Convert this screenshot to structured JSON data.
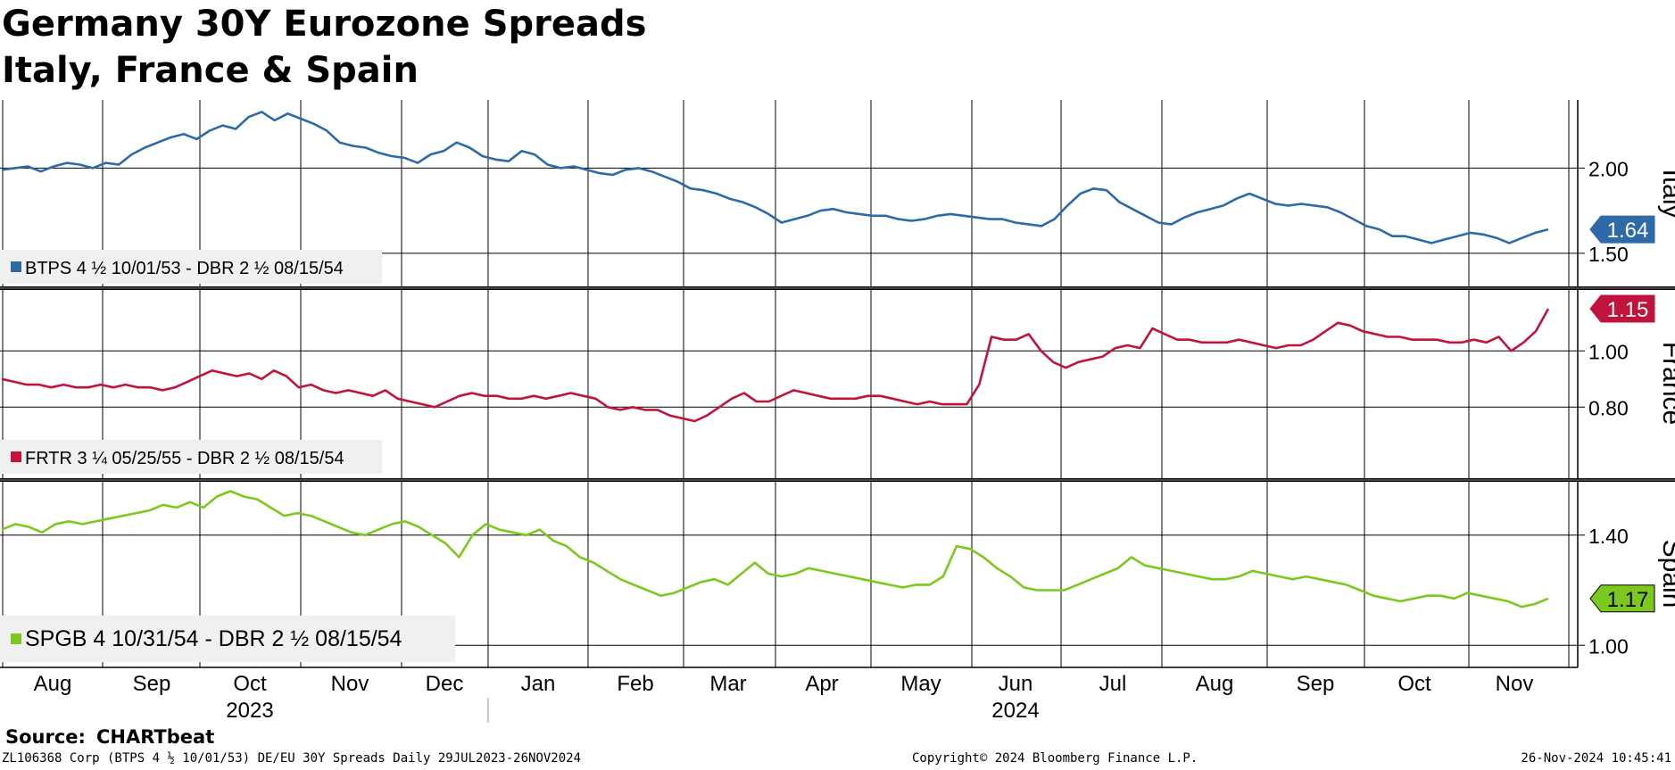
{
  "title_line1": "Germany 30Y Eurozone Spreads",
  "title_line2": "Italy, France & Spain",
  "source_label": "Source:",
  "source_value": "CHARTbeat",
  "footer_left": "ZL106368 Corp (BTPS 4 ½ 10/01/53) DE/EU 30Y Spreads  Daily 29JUL2023-26NOV2024",
  "footer_center": "Copyright© 2024 Bloomberg Finance L.P.",
  "footer_right": "26-Nov-2024 10:45:41",
  "chart_data": {
    "type": "line",
    "title": "Germany 30Y Eurozone Spreads Italy, France & Spain",
    "x_range": [
      "2023-07-29",
      "2024-11-26"
    ],
    "month_ticks": [
      "Aug",
      "Sep",
      "Oct",
      "Nov",
      "Dec",
      "Jan",
      "Feb",
      "Mar",
      "Apr",
      "May",
      "Jun",
      "Jul",
      "Aug",
      "Sep",
      "Oct",
      "Nov"
    ],
    "year_labels": [
      {
        "label": "2023",
        "month_index": 2
      },
      {
        "label": "2024",
        "month_index": 10
      }
    ],
    "panels": [
      {
        "name": "Italy",
        "series_name": "BTPS 4 ½ 10/01/53 - DBR 2 ½ 08/15/54",
        "color": "#2e6aa8",
        "ylim": [
          1.3,
          2.4
        ],
        "ticks": [
          {
            "value": 1.5,
            "label": "1.50"
          },
          {
            "value": 2.0,
            "label": "2.00"
          }
        ],
        "last_value": 1.64,
        "last_label": "1.64",
        "values": [
          1.99,
          2.0,
          2.01,
          1.98,
          2.01,
          2.03,
          2.02,
          2.0,
          2.03,
          2.02,
          2.08,
          2.12,
          2.15,
          2.18,
          2.2,
          2.17,
          2.22,
          2.25,
          2.23,
          2.3,
          2.33,
          2.28,
          2.32,
          2.29,
          2.26,
          2.22,
          2.15,
          2.13,
          2.12,
          2.09,
          2.07,
          2.06,
          2.03,
          2.08,
          2.1,
          2.15,
          2.12,
          2.07,
          2.05,
          2.04,
          2.1,
          2.08,
          2.02,
          2.0,
          2.01,
          1.99,
          1.97,
          1.96,
          1.99,
          2.0,
          1.98,
          1.95,
          1.92,
          1.88,
          1.87,
          1.85,
          1.82,
          1.8,
          1.77,
          1.73,
          1.68,
          1.7,
          1.72,
          1.75,
          1.76,
          1.74,
          1.73,
          1.72,
          1.72,
          1.7,
          1.69,
          1.7,
          1.72,
          1.73,
          1.72,
          1.71,
          1.7,
          1.7,
          1.68,
          1.67,
          1.66,
          1.7,
          1.78,
          1.85,
          1.88,
          1.87,
          1.8,
          1.76,
          1.72,
          1.68,
          1.67,
          1.71,
          1.74,
          1.76,
          1.78,
          1.82,
          1.85,
          1.82,
          1.79,
          1.78,
          1.79,
          1.78,
          1.77,
          1.74,
          1.7,
          1.66,
          1.64,
          1.6,
          1.6,
          1.58,
          1.56,
          1.58,
          1.6,
          1.62,
          1.61,
          1.59,
          1.56,
          1.59,
          1.62,
          1.64
        ]
      },
      {
        "name": "France",
        "series_name": "FRTR 3 ¼ 05/25/55 - DBR 2 ½ 08/15/54",
        "color": "#c0143c",
        "ylim": [
          0.55,
          1.22
        ],
        "ticks": [
          {
            "value": 0.8,
            "label": "0.80"
          },
          {
            "value": 1.0,
            "label": "1.00"
          }
        ],
        "last_value": 1.15,
        "last_label": "1.15",
        "values": [
          0.9,
          0.89,
          0.88,
          0.88,
          0.87,
          0.88,
          0.87,
          0.87,
          0.88,
          0.87,
          0.88,
          0.87,
          0.87,
          0.86,
          0.87,
          0.89,
          0.91,
          0.93,
          0.92,
          0.91,
          0.92,
          0.9,
          0.93,
          0.91,
          0.87,
          0.88,
          0.86,
          0.85,
          0.86,
          0.85,
          0.84,
          0.86,
          0.83,
          0.82,
          0.81,
          0.8,
          0.82,
          0.84,
          0.85,
          0.84,
          0.84,
          0.83,
          0.83,
          0.84,
          0.83,
          0.84,
          0.85,
          0.84,
          0.83,
          0.8,
          0.79,
          0.8,
          0.79,
          0.79,
          0.77,
          0.76,
          0.75,
          0.77,
          0.8,
          0.83,
          0.85,
          0.82,
          0.82,
          0.84,
          0.86,
          0.85,
          0.84,
          0.83,
          0.83,
          0.83,
          0.84,
          0.84,
          0.83,
          0.82,
          0.81,
          0.82,
          0.81,
          0.81,
          0.81,
          0.88,
          1.05,
          1.04,
          1.04,
          1.06,
          1.0,
          0.96,
          0.94,
          0.96,
          0.97,
          0.98,
          1.01,
          1.02,
          1.01,
          1.08,
          1.06,
          1.04,
          1.04,
          1.03,
          1.03,
          1.03,
          1.04,
          1.03,
          1.02,
          1.01,
          1.02,
          1.02,
          1.04,
          1.07,
          1.1,
          1.09,
          1.07,
          1.06,
          1.05,
          1.05,
          1.04,
          1.04,
          1.04,
          1.03,
          1.03,
          1.04,
          1.03,
          1.05,
          1.0,
          1.03,
          1.07,
          1.15
        ]
      },
      {
        "name": "Spain",
        "series_name": "SPGB 4 10/31/54 - DBR 2 ½ 08/15/54",
        "color": "#7dc81e",
        "ylim": [
          0.92,
          1.6
        ],
        "ticks": [
          {
            "value": 1.0,
            "label": "1.00"
          },
          {
            "value": 1.4,
            "label": "1.40"
          }
        ],
        "last_value": 1.17,
        "last_label": "1.17",
        "values": [
          1.42,
          1.44,
          1.43,
          1.41,
          1.44,
          1.45,
          1.44,
          1.45,
          1.46,
          1.47,
          1.48,
          1.49,
          1.51,
          1.5,
          1.52,
          1.5,
          1.54,
          1.56,
          1.54,
          1.53,
          1.5,
          1.47,
          1.48,
          1.47,
          1.45,
          1.43,
          1.41,
          1.4,
          1.42,
          1.44,
          1.45,
          1.43,
          1.4,
          1.37,
          1.32,
          1.4,
          1.44,
          1.42,
          1.41,
          1.4,
          1.42,
          1.38,
          1.36,
          1.32,
          1.3,
          1.27,
          1.24,
          1.22,
          1.2,
          1.18,
          1.19,
          1.21,
          1.23,
          1.24,
          1.22,
          1.26,
          1.3,
          1.26,
          1.25,
          1.26,
          1.28,
          1.27,
          1.26,
          1.25,
          1.24,
          1.23,
          1.22,
          1.21,
          1.22,
          1.22,
          1.25,
          1.36,
          1.35,
          1.32,
          1.28,
          1.25,
          1.21,
          1.2,
          1.2,
          1.2,
          1.22,
          1.24,
          1.26,
          1.28,
          1.32,
          1.29,
          1.28,
          1.27,
          1.26,
          1.25,
          1.24,
          1.24,
          1.25,
          1.27,
          1.26,
          1.25,
          1.24,
          1.25,
          1.24,
          1.23,
          1.22,
          1.2,
          1.18,
          1.17,
          1.16,
          1.17,
          1.18,
          1.18,
          1.17,
          1.19,
          1.18,
          1.17,
          1.16,
          1.14,
          1.15,
          1.17
        ]
      }
    ]
  }
}
